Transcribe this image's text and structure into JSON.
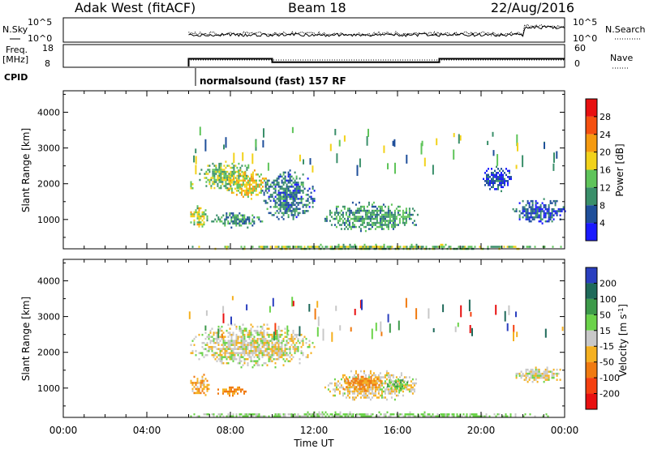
{
  "header": {
    "radar": "Adak West (fitACF)",
    "beam": "Beam 18",
    "date": "22/Aug/2016"
  },
  "status": {
    "nsky_label": "N.Sky",
    "nsearch_label": "N.Search",
    "freq_label_1": "Freq.",
    "freq_label_2": "[MHz]",
    "nave_label": "Nave",
    "cpid_label": "CPID",
    "cpid_text": "normalsound (fast) 157 RF",
    "noise_ticks": [
      "10^5",
      "10^0"
    ],
    "freq_ticks": [
      "18",
      "8"
    ],
    "nave_ticks": [
      "60",
      "0"
    ]
  },
  "chart_data": [
    {
      "type": "heatmap",
      "name": "Power",
      "ylabel": "Slant Range [km]",
      "xlabel": "Time UT",
      "x_ticks": [
        "00:00",
        "04:00",
        "08:00",
        "12:00",
        "16:00",
        "20:00",
        "00:00"
      ],
      "y_ticks": [
        1000,
        2000,
        3000,
        4000
      ],
      "ylim": [
        180,
        4600
      ],
      "xlim_hours": [
        0,
        24
      ],
      "colorbar": {
        "label": "Power [dB]",
        "ticks": [
          4,
          8,
          12,
          16,
          20,
          24,
          28
        ],
        "range": [
          0,
          32
        ],
        "colors": [
          "#1a1aff",
          "#1f4f9a",
          "#3a8f6a",
          "#5fc45a",
          "#f2d21a",
          "#f59a10",
          "#f55010",
          "#e81010"
        ]
      },
      "regions": [
        {
          "t": [
            6.0,
            6.2
          ],
          "r": [
            1800,
            2300
          ],
          "level": 14
        },
        {
          "t": [
            6.0,
            7.0
          ],
          "r": [
            800,
            1400
          ],
          "level": 16
        },
        {
          "t": [
            6.5,
            8.8
          ],
          "r": [
            1800,
            2700
          ],
          "level": 14
        },
        {
          "t": [
            7.8,
            9.8
          ],
          "r": [
            1600,
            2400
          ],
          "level": 18
        },
        {
          "t": [
            9.5,
            12.0
          ],
          "r": [
            1000,
            2400
          ],
          "level": 8
        },
        {
          "t": [
            7.0,
            9.5
          ],
          "r": [
            800,
            1200
          ],
          "level": 10
        },
        {
          "t": [
            12.5,
            17.0
          ],
          "r": [
            700,
            1500
          ],
          "level": 11
        },
        {
          "t": [
            21.5,
            24.0
          ],
          "r": [
            900,
            1600
          ],
          "level": 6
        },
        {
          "t": [
            20.0,
            21.5
          ],
          "r": [
            1800,
            2500
          ],
          "level": 5
        },
        {
          "t": [
            6.0,
            24.0
          ],
          "r": [
            180,
            320
          ],
          "level": 14
        }
      ]
    },
    {
      "type": "heatmap",
      "name": "Velocity",
      "ylabel": "Slant Range [km]",
      "xlabel": "Time UT",
      "x_ticks": [
        "00:00",
        "04:00",
        "08:00",
        "12:00",
        "16:00",
        "20:00",
        "00:00"
      ],
      "y_ticks": [
        1000,
        2000,
        3000,
        4000
      ],
      "ylim": [
        180,
        4600
      ],
      "xlim_hours": [
        0,
        24
      ],
      "colorbar": {
        "label": "Velocity [m s^-1]",
        "ticks": [
          "200",
          "100",
          "50",
          "15",
          "-15",
          "-50",
          "-100",
          "-200"
        ],
        "colors": [
          "#2a3fbf",
          "#1f6a5a",
          "#3d9a4a",
          "#6bd34a",
          "#c8c8c8",
          "#f5b020",
          "#f07a10",
          "#f54010",
          "#e81010"
        ]
      },
      "regions": [
        {
          "t": [
            6.0,
            12.0
          ],
          "r": [
            1600,
            2800
          ],
          "velocity": 0
        },
        {
          "t": [
            6.0,
            7.0
          ],
          "r": [
            800,
            1400
          ],
          "velocity": -40
        },
        {
          "t": [
            7.3,
            8.8
          ],
          "r": [
            800,
            1100
          ],
          "velocity": -60
        },
        {
          "t": [
            12.5,
            17.0
          ],
          "r": [
            700,
            1500
          ],
          "velocity": -10
        },
        {
          "t": [
            13.3,
            15.3
          ],
          "r": [
            900,
            1400
          ],
          "velocity": -60
        },
        {
          "t": [
            15.5,
            16.5
          ],
          "r": [
            900,
            1300
          ],
          "velocity": 40
        },
        {
          "t": [
            21.5,
            24.0
          ],
          "r": [
            1200,
            1600
          ],
          "velocity": 0
        },
        {
          "t": [
            6.0,
            24.0
          ],
          "r": [
            180,
            350
          ],
          "velocity": 20
        }
      ]
    }
  ]
}
